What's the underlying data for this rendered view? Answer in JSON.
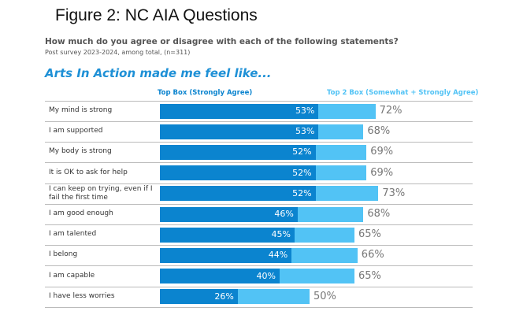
{
  "chart_data": {
    "type": "bar",
    "title": "Figure 2: NC AIA Questions",
    "subtitle": "How much do you agree or disagree with each of the following statements?",
    "caption": "Post survey 2023-2024, among total, (n=311)",
    "heading": "Arts In Action made me feel like...",
    "categories": [
      "My mind is strong",
      "I am supported",
      "My body is strong",
      "It is OK to ask for help",
      "I can keep on trying, even if I fail the first time",
      "I am good enough",
      "I am talented",
      "I belong",
      "I am capable",
      "I have less worries"
    ],
    "series": [
      {
        "name": "Top Box (Strongly Agree)",
        "color": "#0b84cf",
        "values": [
          53,
          53,
          52,
          52,
          52,
          46,
          45,
          44,
          40,
          26
        ],
        "value_labels": [
          "53%",
          "53%",
          "52%",
          "52%",
          "52%",
          "46%",
          "45%",
          "44%",
          "40%",
          "26%"
        ]
      },
      {
        "name": "Top 2 Box (Somewhat + Strongly Agree)",
        "color": "#52c3f5",
        "values": [
          72,
          68,
          69,
          69,
          73,
          68,
          65,
          66,
          65,
          50
        ],
        "value_labels": [
          "72%",
          "68%",
          "69%",
          "69%",
          "73%",
          "68%",
          "65%",
          "66%",
          "65%",
          "50%"
        ]
      }
    ]
  }
}
